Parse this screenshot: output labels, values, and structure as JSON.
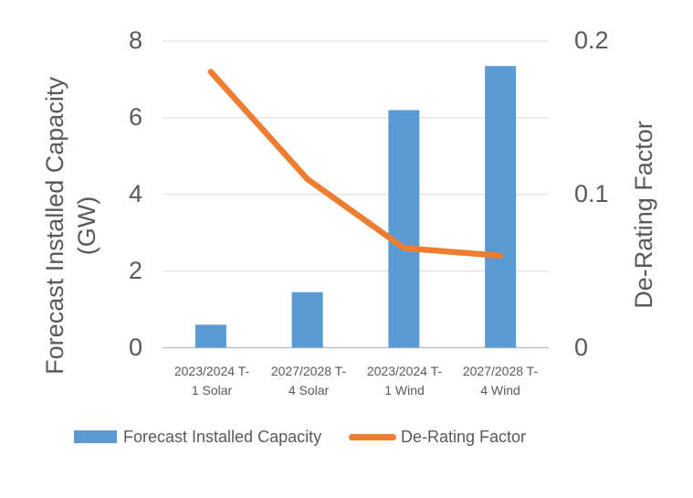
{
  "colors": {
    "bar": "#5B9BD5",
    "line": "#ED7D31",
    "grid": "#D9D9D9",
    "baseline": "#BFBFBF",
    "text": "#595959"
  },
  "chart_data": {
    "type": "bar",
    "title": "",
    "categories": [
      "2023/2024 T-1 Solar",
      "2027/2028 T-4 Solar",
      "2023/2024 T-1 Wind",
      "2027/2028 T-4 Wind"
    ],
    "categories_wrapped": [
      [
        "2023/2024 T-",
        "1 Solar"
      ],
      [
        "2027/2028 T-",
        "4 Solar"
      ],
      [
        "2023/2024 T-",
        "1 Wind"
      ],
      [
        "2027/2028 T-",
        "4 Wind"
      ]
    ],
    "series": [
      {
        "name": "Forecast Installed Capacity",
        "type": "bar",
        "axis": "left",
        "color": "#5B9BD5",
        "values": [
          0.6,
          1.45,
          6.2,
          7.35
        ]
      },
      {
        "name": "De-Rating Factor",
        "type": "line",
        "axis": "right",
        "color": "#ED7D31",
        "values": [
          0.18,
          0.11,
          0.065,
          0.06
        ]
      }
    ],
    "left_axis": {
      "label": "Forecast Installed Capacity (GW)",
      "label_lines": [
        "Forecast Installed Capacity",
        "(GW)"
      ],
      "range": [
        0,
        8
      ],
      "ticks": [
        8,
        6,
        4,
        2,
        0
      ],
      "tick_labels": [
        "8",
        "6",
        "4",
        "2",
        "0"
      ]
    },
    "right_axis": {
      "label": "De-Rating Factor",
      "range": [
        0,
        0.2
      ],
      "ticks": [
        0.2,
        0.1,
        0
      ],
      "tick_labels": [
        "0.2",
        "0.1",
        "0"
      ]
    },
    "grid": true,
    "legend_position": "bottom",
    "legend": [
      {
        "label": "Forecast Installed Capacity",
        "swatch": "bar"
      },
      {
        "label": "De-Rating Factor",
        "swatch": "line"
      }
    ]
  }
}
